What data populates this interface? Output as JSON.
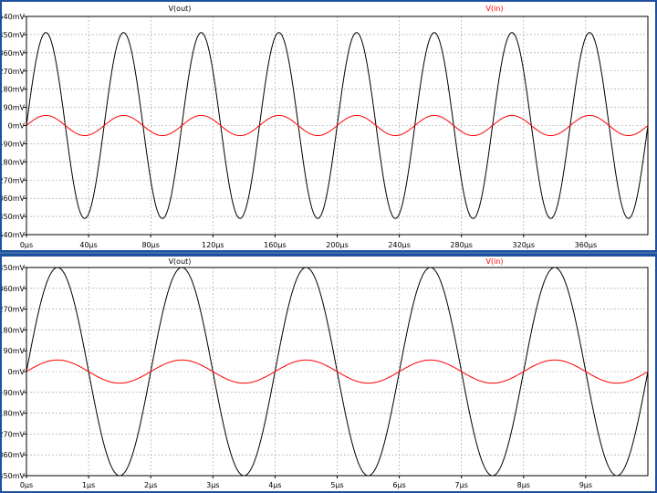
{
  "chart_data": [
    {
      "type": "line",
      "title": "",
      "xlabel": "",
      "ylabel": "",
      "x_unit": "µs",
      "xlim": [
        0,
        400
      ],
      "ylim": [
        -540,
        540
      ],
      "y_unit": "mV",
      "grid": true,
      "x_tick_labels": [
        "0µs",
        "40µs",
        "80µs",
        "120µs",
        "160µs",
        "200µs",
        "240µs",
        "280µs",
        "320µs",
        "360µs"
      ],
      "x_tick_values": [
        0,
        40,
        80,
        120,
        160,
        200,
        240,
        280,
        320,
        360
      ],
      "y_tick_labels": [
        "540mV",
        "450mV",
        "360mV",
        "270mV",
        "180mV",
        "90mV",
        "0mV",
        "-90mV",
        "-180mV",
        "-270mV",
        "-360mV",
        "-450mV",
        "-540mV"
      ],
      "y_tick_values": [
        540,
        450,
        360,
        270,
        180,
        90,
        0,
        -90,
        -180,
        -270,
        -360,
        -450,
        -540
      ],
      "series": [
        {
          "name": "V(out)",
          "color": "#000000",
          "amplitude": 460,
          "period": 50,
          "phase": "sine"
        },
        {
          "name": "V(in)",
          "color": "#ff0000",
          "amplitude": 50,
          "period": 50,
          "phase": "sine"
        }
      ]
    },
    {
      "type": "line",
      "title": "",
      "xlabel": "",
      "ylabel": "",
      "x_unit": "µs",
      "xlim": [
        0,
        10
      ],
      "ylim": [
        -450,
        450
      ],
      "y_unit": "mV",
      "grid": true,
      "x_tick_labels": [
        "0µs",
        "1µs",
        "2µs",
        "3µs",
        "4µs",
        "5µs",
        "6µs",
        "7µs",
        "8µs",
        "9µs"
      ],
      "x_tick_values": [
        0,
        1,
        2,
        3,
        4,
        5,
        6,
        7,
        8,
        9
      ],
      "y_tick_labels": [
        "450mV",
        "360mV",
        "270mV",
        "180mV",
        "90mV",
        "0mV",
        "-90mV",
        "-180mV",
        "-270mV",
        "-360mV",
        "-450mV"
      ],
      "y_tick_values": [
        450,
        360,
        270,
        180,
        90,
        0,
        -90,
        -180,
        -270,
        -360,
        -450
      ],
      "series": [
        {
          "name": "V(out)",
          "color": "#000000",
          "amplitude": 450,
          "period": 2,
          "phase": "sine"
        },
        {
          "name": "V(in)",
          "color": "#ff0000",
          "amplitude": 50,
          "period": 2,
          "phase": "sine"
        }
      ]
    }
  ]
}
